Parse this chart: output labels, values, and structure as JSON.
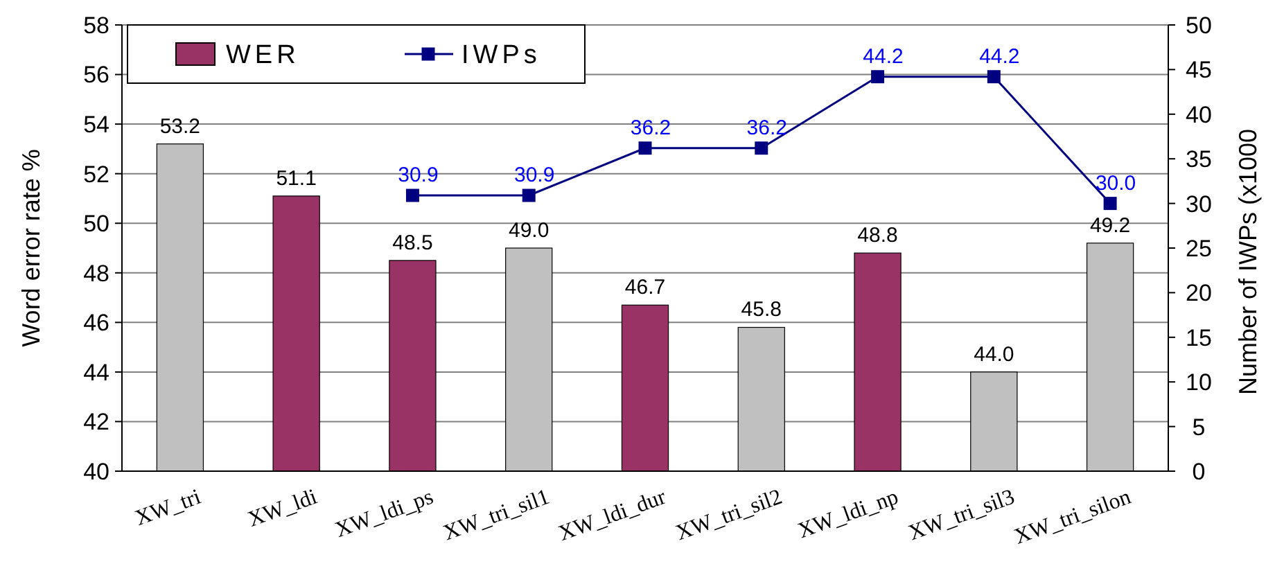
{
  "chart_data": {
    "type": "bar",
    "categories": [
      "XW_tri",
      "XW_ldi",
      "XW_ldi_ps",
      "XW_tri_sil1",
      "XW_ldi_dur",
      "XW_tri_sil2",
      "XW_ldi_np",
      "XW_tri_sil3",
      "XW_tri_silon"
    ],
    "ylabel": "Word error rate %",
    "y2label": "Number of IWPs (x1000",
    "ylim": [
      40,
      58
    ],
    "yticks": [
      40,
      42,
      44,
      46,
      48,
      50,
      52,
      54,
      56,
      58
    ],
    "y2lim": [
      0,
      50
    ],
    "y2ticks": [
      0,
      5,
      10,
      15,
      20,
      25,
      30,
      35,
      40,
      45,
      50
    ],
    "grid": "y",
    "legend": "top left",
    "marker": "square",
    "series": [
      {
        "name": "WER",
        "color": "#993366",
        "colors": [
          "#c0c0c0",
          "#993366",
          "#993366",
          "#c0c0c0",
          "#993366",
          "#c0c0c0",
          "#993366",
          "#c0c0c0",
          "#c0c0c0"
        ],
        "values": [
          53.2,
          51.1,
          48.5,
          49.0,
          46.7,
          45.8,
          48.8,
          44.0,
          49.2
        ],
        "value_labels": [
          "53.2",
          "51.1",
          "48.5",
          "49.0",
          "46.7",
          "45.8",
          "48.8",
          "44.0",
          "49.2"
        ]
      },
      {
        "name": "IWPs",
        "type": "line",
        "axis": "y2",
        "color": "#000080",
        "values": [
          null,
          null,
          30.9,
          30.9,
          36.2,
          36.2,
          44.2,
          44.2,
          30.0
        ],
        "value_labels": [
          null,
          null,
          "30.9",
          "30.9",
          "36.2",
          "36.2",
          "44.2",
          "44.2",
          "30.0"
        ]
      }
    ]
  }
}
